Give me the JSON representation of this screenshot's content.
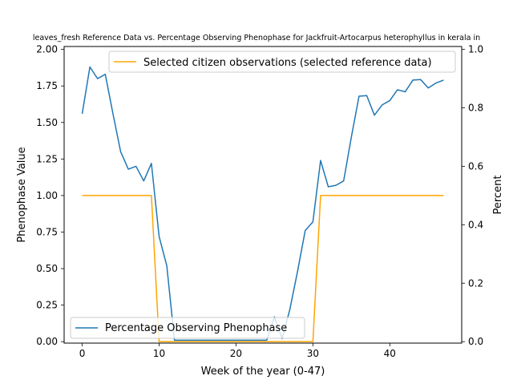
{
  "chart_data": {
    "type": "line",
    "title": "leaves_fresh Reference Data vs. Percentage Observing Phenophase for Jackfruit-Artocarpus heterophyllus in kerala in",
    "xlabel": "Week of the year (0-47)",
    "ylabel_left": "Phenophase Value",
    "ylabel_right": "Percent",
    "xlim": [
      -2.35,
      49.35
    ],
    "ylim_left": [
      -0.01,
      2.02
    ],
    "ylim_right": [
      -0.005,
      1.01
    ],
    "x_ticks": [
      0,
      10,
      20,
      30,
      40
    ],
    "y_ticks_left": [
      0.0,
      0.25,
      0.5,
      0.75,
      1.0,
      1.25,
      1.5,
      1.75,
      2.0
    ],
    "y_ticks_right": [
      0.0,
      0.2,
      0.4,
      0.6,
      0.8,
      1.0
    ],
    "grid": false,
    "series": [
      {
        "name": "Selected citizen observations (selected reference data)",
        "axis": "left",
        "color": "#ffa500",
        "legend_position": "top-right",
        "x": [
          0,
          1,
          2,
          3,
          4,
          5,
          6,
          7,
          8,
          9,
          10,
          11,
          12,
          13,
          14,
          15,
          16,
          17,
          18,
          19,
          20,
          21,
          22,
          23,
          24,
          25,
          26,
          27,
          28,
          29,
          30,
          31,
          32,
          33,
          34,
          35,
          36,
          37,
          38,
          39,
          40,
          41,
          42,
          43,
          44,
          45,
          46,
          47
        ],
        "values": [
          1,
          1,
          1,
          1,
          1,
          1,
          1,
          1,
          1,
          1,
          0,
          0,
          0,
          0,
          0,
          0,
          0,
          0,
          0,
          0,
          0,
          0,
          0,
          0,
          0,
          0,
          0,
          0,
          0,
          0,
          0,
          1,
          1,
          1,
          1,
          1,
          1,
          1,
          1,
          1,
          1,
          1,
          1,
          1,
          1,
          1,
          1,
          1
        ]
      },
      {
        "name": "Percentage Observing Phenophase",
        "axis": "right",
        "color": "#1f77b4",
        "legend_position": "bottom-left",
        "x": [
          0,
          1,
          2,
          3,
          4,
          5,
          6,
          7,
          8,
          9,
          10,
          11,
          12,
          13,
          14,
          15,
          16,
          17,
          18,
          19,
          20,
          21,
          22,
          23,
          24,
          25,
          26,
          27,
          28,
          29,
          30,
          31,
          32,
          33,
          34,
          35,
          36,
          37,
          38,
          39,
          40,
          41,
          42,
          43,
          44,
          45,
          46,
          47
        ],
        "values": [
          0.78,
          0.94,
          0.9,
          0.915,
          0.78,
          0.65,
          0.59,
          0.6,
          0.55,
          0.61,
          0.36,
          0.26,
          0.005,
          0.005,
          0.005,
          0.005,
          0.005,
          0.005,
          0.005,
          0.005,
          0.005,
          0.005,
          0.005,
          0.005,
          0.005,
          0.085,
          0.01,
          0.11,
          0.24,
          0.38,
          0.41,
          0.62,
          0.53,
          0.535,
          0.55,
          0.7,
          0.84,
          0.842,
          0.775,
          0.81,
          0.825,
          0.862,
          0.855,
          0.895,
          0.897,
          0.868,
          0.885,
          0.895
        ]
      }
    ]
  }
}
